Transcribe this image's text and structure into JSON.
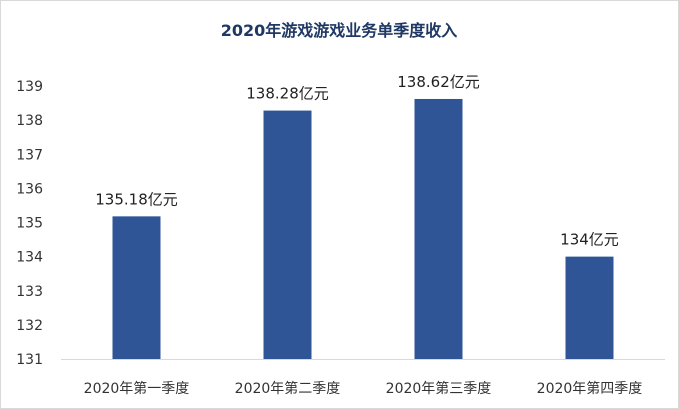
{
  "chart_data": {
    "type": "bar",
    "title": "2020年游戏游戏业务单季度收入",
    "categories": [
      "2020年第一季度",
      "2020年第二季度",
      "2020年第三季度",
      "2020年第四季度"
    ],
    "values": [
      135.18,
      138.28,
      138.62,
      134
    ],
    "data_labels": [
      "135.18亿元",
      "138.28亿元",
      "138.62亿元",
      "134亿元"
    ],
    "ylim": [
      131,
      139
    ],
    "yticks": [
      "131",
      "132",
      "133",
      "134",
      "135",
      "136",
      "137",
      "138",
      "139"
    ],
    "xlabel": "",
    "ylabel": "",
    "grid": false,
    "legend": "none",
    "colors": {
      "bar": "#2f5597",
      "axis": "#d9d9d9",
      "title": "#1f3864"
    }
  }
}
